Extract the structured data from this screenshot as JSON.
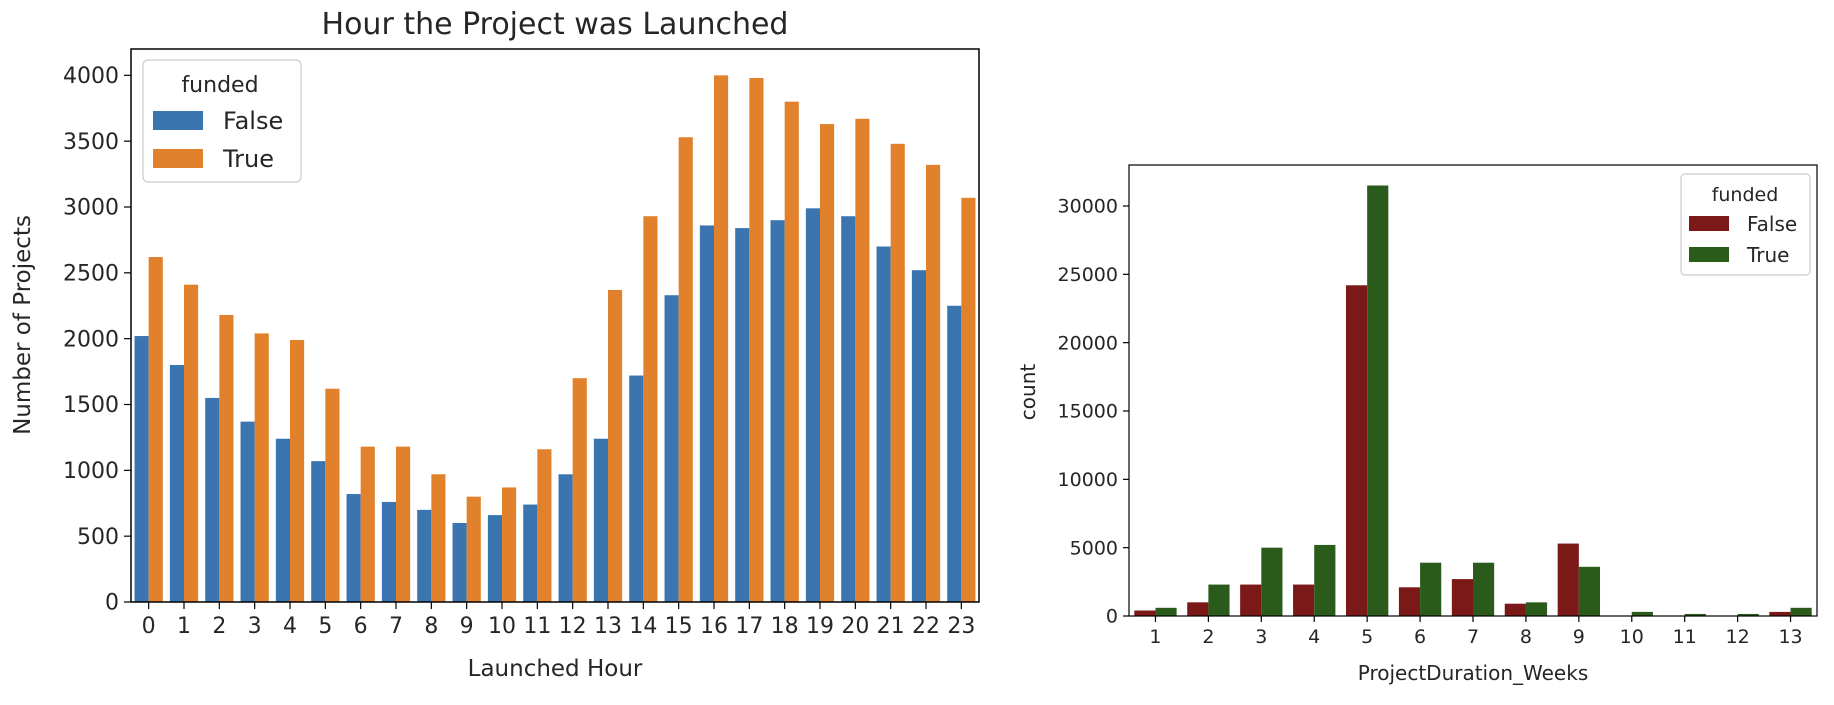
{
  "charts": {
    "left": {
      "chart_data": {
        "type": "bar",
        "title": "Hour the Project was Launched",
        "xlabel": "Launched Hour",
        "ylabel": "Number of Projects",
        "categories": [
          "0",
          "1",
          "2",
          "3",
          "4",
          "5",
          "6",
          "7",
          "8",
          "9",
          "10",
          "11",
          "12",
          "13",
          "14",
          "15",
          "16",
          "17",
          "18",
          "19",
          "20",
          "21",
          "22",
          "23"
        ],
        "series": [
          {
            "name": "False",
            "color": "#3a75b0",
            "values": [
              2020,
              1800,
              1550,
              1370,
              1240,
              1070,
              820,
              760,
              700,
              600,
              660,
              740,
              970,
              1240,
              1720,
              2330,
              2860,
              2840,
              2900,
              2990,
              2930,
              2700,
              2520,
              2250
            ]
          },
          {
            "name": "True",
            "color": "#e1812c",
            "values": [
              2620,
              2410,
              2180,
              2040,
              1990,
              1620,
              1180,
              1180,
              970,
              800,
              870,
              1160,
              1700,
              2370,
              2930,
              3530,
              4000,
              3980,
              3800,
              3630,
              3670,
              3480,
              3320,
              3070
            ]
          }
        ],
        "ylim": [
          0,
          4200
        ],
        "yticks": [
          0,
          500,
          1000,
          1500,
          2000,
          2500,
          3000,
          3500,
          4000
        ],
        "legend": {
          "title": "funded",
          "placement": "upper-left"
        },
        "grid": false
      }
    },
    "right": {
      "chart_data": {
        "type": "bar",
        "title": "",
        "xlabel": "ProjectDuration_Weeks",
        "ylabel": "count",
        "categories": [
          "1",
          "2",
          "3",
          "4",
          "5",
          "6",
          "7",
          "8",
          "9",
          "10",
          "11",
          "12",
          "13"
        ],
        "series": [
          {
            "name": "False",
            "color": "#7b1818",
            "values": [
              400,
              1000,
              2300,
              2300,
              24200,
              2100,
              2700,
              900,
              5300,
              30,
              30,
              30,
              300
            ]
          },
          {
            "name": "True",
            "color": "#2a5b1b",
            "values": [
              600,
              2300,
              5000,
              5200,
              31500,
              3900,
              3900,
              1000,
              3600,
              300,
              150,
              150,
              600
            ]
          }
        ],
        "ylim": [
          0,
          33000
        ],
        "yticks": [
          0,
          5000,
          10000,
          15000,
          20000,
          25000,
          30000
        ],
        "legend": {
          "title": "funded",
          "placement": "upper-right"
        },
        "grid": false
      }
    }
  }
}
